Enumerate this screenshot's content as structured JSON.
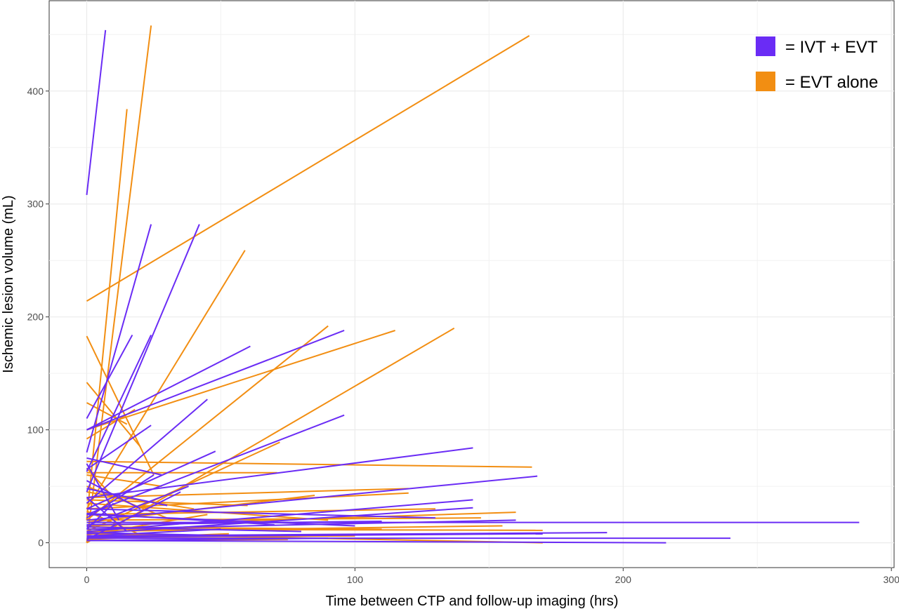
{
  "chart_data": {
    "type": "line",
    "title": "",
    "xlabel": "Time between CTP and follow-up imaging (hrs)",
    "ylabel": "Ischemic lesion volume (mL)",
    "xlim": [
      -14,
      301
    ],
    "ylim": [
      -22,
      480
    ],
    "x_ticks": [
      0,
      100,
      200,
      300
    ],
    "y_ticks": [
      0,
      100,
      200,
      300,
      400
    ],
    "grid": true,
    "legend_position": "top-right",
    "colors": {
      "ivt_evt": "#6a2cf5",
      "evt_alone": "#f28e12"
    },
    "legend": [
      {
        "key": "ivt_evt",
        "color": "#6a2cf5",
        "label": "= IVT + EVT"
      },
      {
        "key": "evt_alone",
        "color": "#f28e12",
        "label": "= EVT alone"
      }
    ],
    "series": [
      {
        "key": "ivt_evt",
        "segments": [
          [
            [
              0,
              308
            ],
            [
              7,
              454
            ]
          ],
          [
            [
              0,
              80
            ],
            [
              24,
              282
            ]
          ],
          [
            [
              0,
              45
            ],
            [
              42,
              282
            ]
          ],
          [
            [
              0,
              110
            ],
            [
              17,
              184
            ]
          ],
          [
            [
              0,
              63
            ],
            [
              24,
              184
            ]
          ],
          [
            [
              0,
              100
            ],
            [
              61,
              174
            ]
          ],
          [
            [
              0,
              100
            ],
            [
              96,
              188
            ]
          ],
          [
            [
              0,
              35
            ],
            [
              45,
              127
            ]
          ],
          [
            [
              0,
              25
            ],
            [
              96,
              113
            ]
          ],
          [
            [
              0,
              65
            ],
            [
              24,
              104
            ]
          ],
          [
            [
              0,
              40
            ],
            [
              144,
              84
            ]
          ],
          [
            [
              0,
              30
            ],
            [
              48,
              81
            ]
          ],
          [
            [
              0,
              20
            ],
            [
              168,
              59
            ]
          ],
          [
            [
              0,
              15
            ],
            [
              38,
              50
            ]
          ],
          [
            [
              0,
              10
            ],
            [
              144,
              38
            ]
          ],
          [
            [
              0,
              8
            ],
            [
              144,
              31
            ]
          ],
          [
            [
              0,
              12
            ],
            [
              160,
              20
            ]
          ],
          [
            [
              0,
              18
            ],
            [
              288,
              18
            ]
          ],
          [
            [
              0,
              6
            ],
            [
              194,
              9
            ]
          ],
          [
            [
              0,
              4
            ],
            [
              240,
              4
            ]
          ],
          [
            [
              0,
              2
            ],
            [
              216,
              0
            ]
          ],
          [
            [
              0,
              5
            ],
            [
              170,
              8
            ]
          ],
          [
            [
              0,
              30
            ],
            [
              130,
              22
            ]
          ],
          [
            [
              0,
              25
            ],
            [
              100,
              15
            ]
          ],
          [
            [
              0,
              14
            ],
            [
              80,
              10
            ]
          ],
          [
            [
              0,
              9
            ],
            [
              60,
              6
            ]
          ],
          [
            [
              0,
              70
            ],
            [
              12,
              20
            ]
          ],
          [
            [
              0,
              55
            ],
            [
              20,
              30
            ]
          ],
          [
            [
              0,
              48
            ],
            [
              30,
              33
            ]
          ],
          [
            [
              0,
              22
            ],
            [
              25,
              60
            ]
          ],
          [
            [
              0,
              3
            ],
            [
              35,
              45
            ]
          ],
          [
            [
              0,
              75
            ],
            [
              28,
              60
            ]
          ],
          [
            [
              0,
              12
            ],
            [
              10,
              35
            ]
          ],
          [
            [
              0,
              6
            ],
            [
              50,
              12
            ]
          ],
          [
            [
              0,
              16
            ],
            [
              110,
              19
            ]
          ],
          [
            [
              0,
              2
            ],
            [
              90,
              4
            ]
          ],
          [
            [
              0,
              26
            ],
            [
              70,
              16
            ]
          ],
          [
            [
              0,
              40
            ],
            [
              15,
              10
            ]
          ]
        ]
      },
      {
        "key": "evt_alone",
        "segments": [
          [
            [
              0,
              214
            ],
            [
              165,
              449
            ]
          ],
          [
            [
              0,
              0
            ],
            [
              24,
              458
            ]
          ],
          [
            [
              0,
              20
            ],
            [
              15,
              384
            ]
          ],
          [
            [
              0,
              30
            ],
            [
              59,
              259
            ]
          ],
          [
            [
              0,
              20
            ],
            [
              90,
              192
            ]
          ],
          [
            [
              0,
              0
            ],
            [
              137,
              190
            ]
          ],
          [
            [
              0,
              100
            ],
            [
              115,
              188
            ]
          ],
          [
            [
              0,
              10
            ],
            [
              72,
              89
            ]
          ],
          [
            [
              0,
              72
            ],
            [
              166,
              67
            ]
          ],
          [
            [
              0,
              62
            ],
            [
              71,
              62
            ]
          ],
          [
            [
              0,
              40
            ],
            [
              120,
              48
            ]
          ],
          [
            [
              0,
              30
            ],
            [
              120,
              44
            ]
          ],
          [
            [
              0,
              183
            ],
            [
              25,
              60
            ]
          ],
          [
            [
              0,
              142
            ],
            [
              20,
              85
            ]
          ],
          [
            [
              0,
              124
            ],
            [
              15,
              105
            ]
          ],
          [
            [
              0,
              92
            ],
            [
              18,
              118
            ]
          ],
          [
            [
              0,
              15
            ],
            [
              160,
              27
            ]
          ],
          [
            [
              0,
              12
            ],
            [
              170,
              11
            ]
          ],
          [
            [
              0,
              8
            ],
            [
              170,
              0
            ]
          ],
          [
            [
              0,
              20
            ],
            [
              147,
              22
            ]
          ],
          [
            [
              0,
              5
            ],
            [
              100,
              6
            ]
          ],
          [
            [
              0,
              35
            ],
            [
              90,
              20
            ]
          ],
          [
            [
              0,
              25
            ],
            [
              130,
              30
            ]
          ],
          [
            [
              0,
              3
            ],
            [
              53,
              8
            ]
          ],
          [
            [
              0,
              45
            ],
            [
              40,
              30
            ]
          ],
          [
            [
              0,
              60
            ],
            [
              28,
              50
            ]
          ],
          [
            [
              0,
              18
            ],
            [
              85,
              42
            ]
          ],
          [
            [
              0,
              10
            ],
            [
              155,
              15
            ]
          ],
          [
            [
              0,
              7
            ],
            [
              45,
              25
            ]
          ],
          [
            [
              0,
              28
            ],
            [
              22,
              5
            ]
          ],
          [
            [
              0,
              50
            ],
            [
              32,
              20
            ]
          ],
          [
            [
              0,
              14
            ],
            [
              110,
              12
            ]
          ],
          [
            [
              0,
              2
            ],
            [
              75,
              3
            ]
          ],
          [
            [
              0,
              38
            ],
            [
              60,
              33
            ]
          ],
          [
            [
              0,
              66
            ],
            [
              10,
              40
            ]
          ]
        ]
      }
    ]
  }
}
